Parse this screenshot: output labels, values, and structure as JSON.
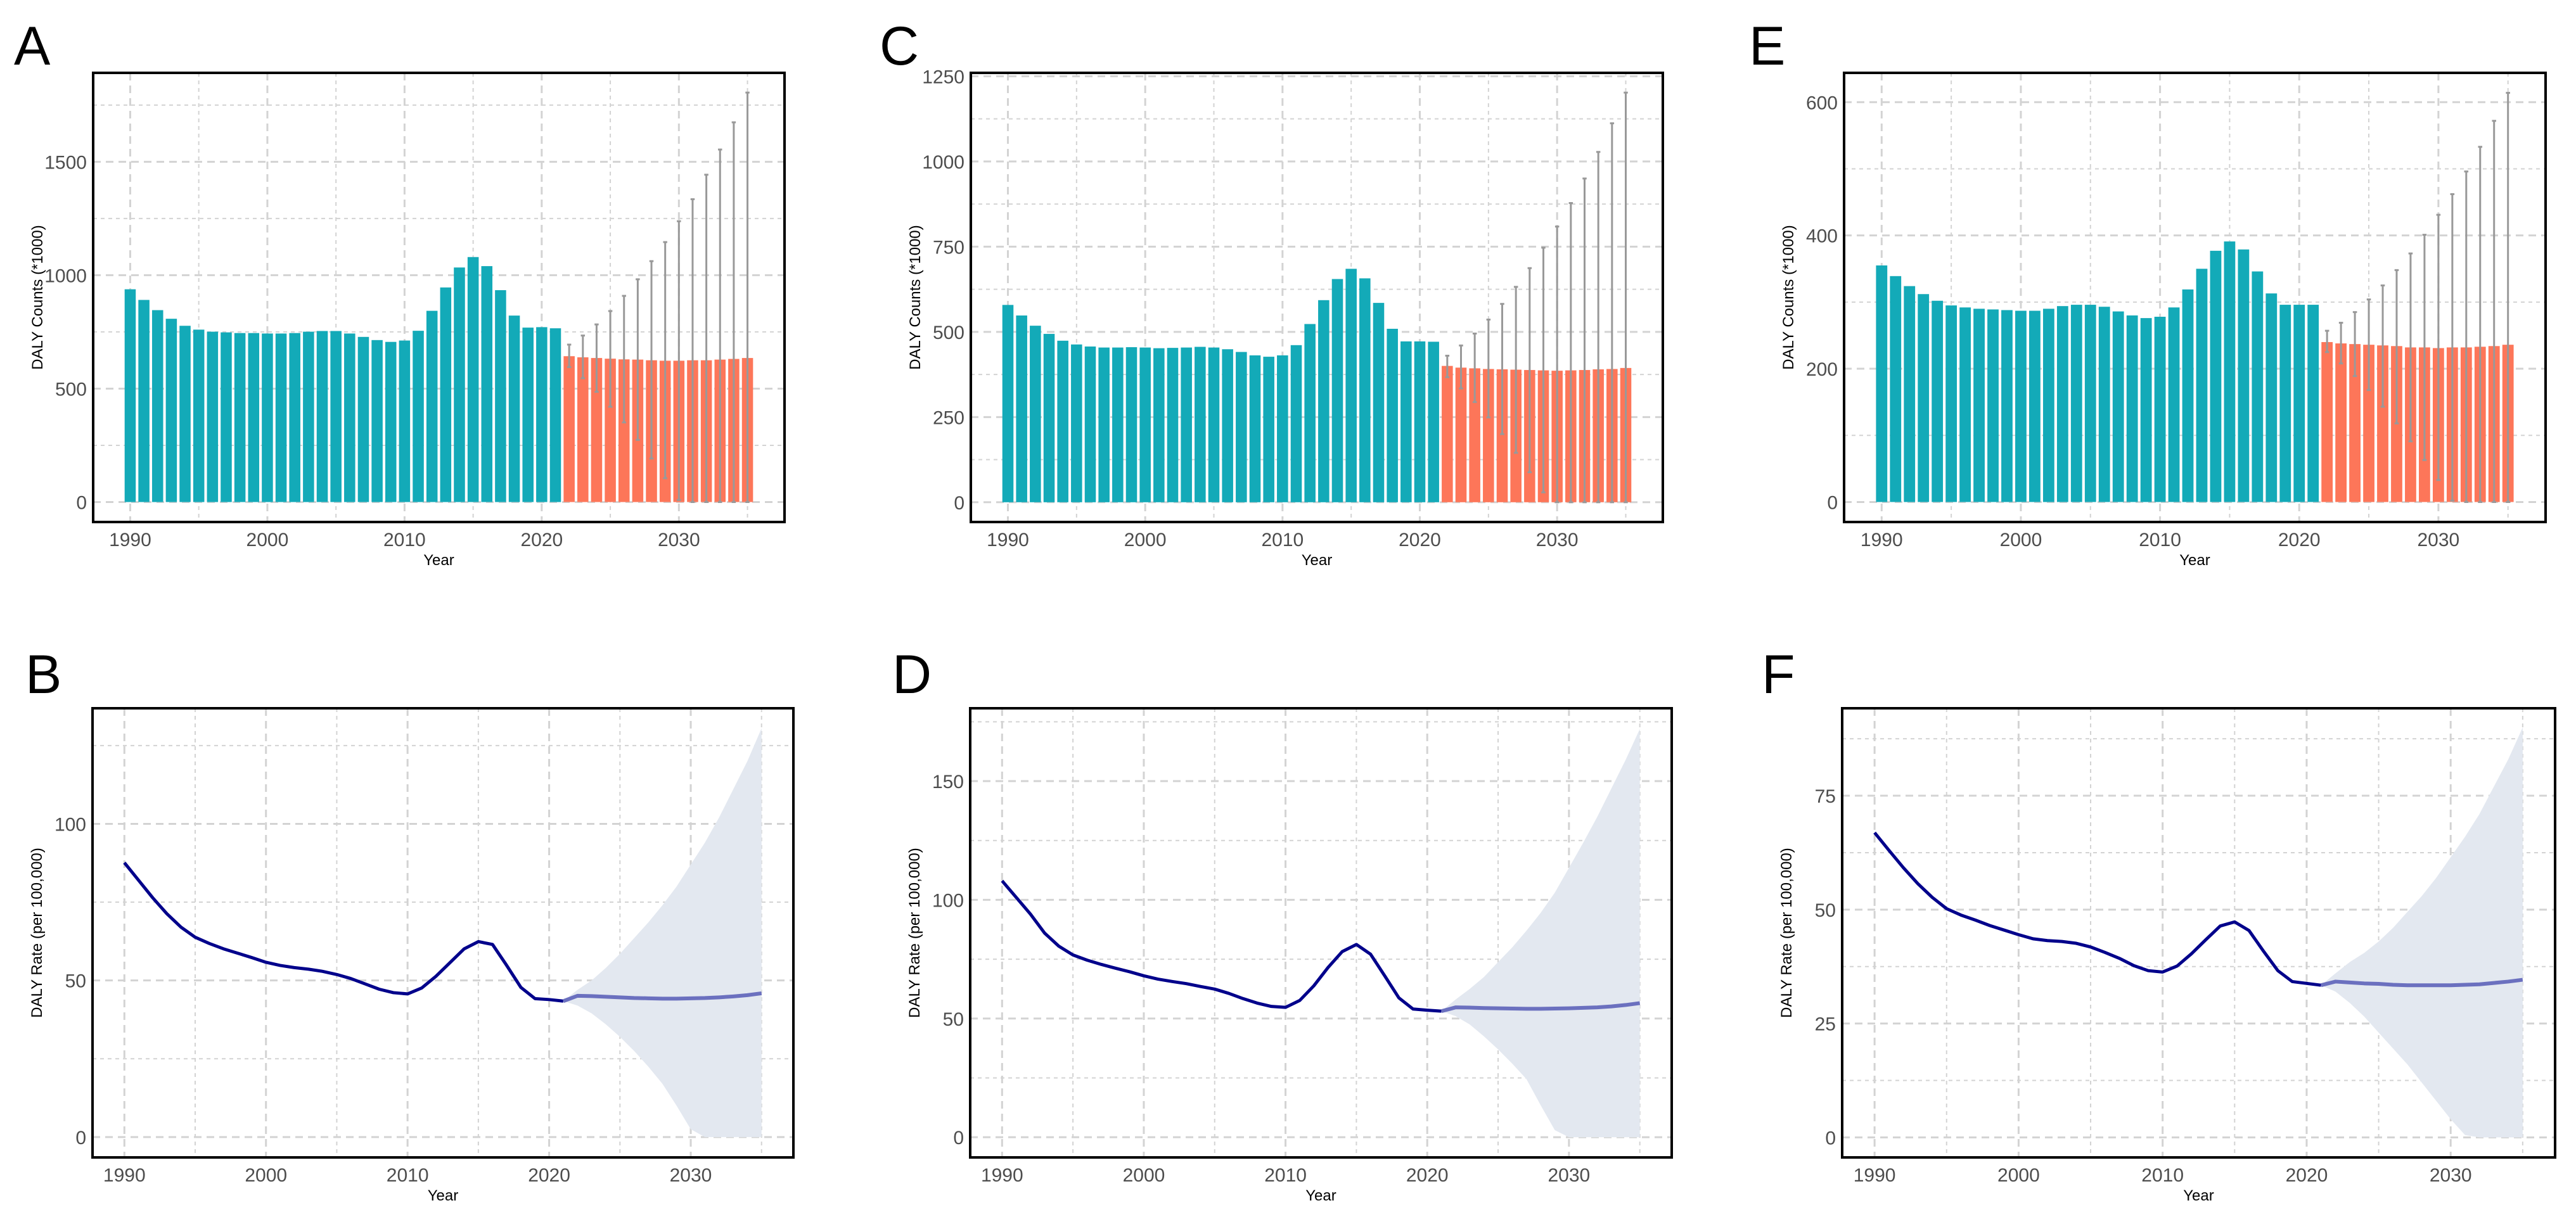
{
  "panel_letters": [
    "A",
    "B",
    "C",
    "D",
    "E",
    "F"
  ],
  "colors": {
    "observed_bar": "#13aab8",
    "predicted_bar": "#fd7659",
    "error_bar": "#999999",
    "observed_line": "#00008b",
    "predicted_line": "#6b70bf",
    "ribbon": "#e3e8f0",
    "grid": "#d3d3d3"
  },
  "chart_data": [
    {
      "panel": "A",
      "type": "bar",
      "title": "",
      "xlabel": "Year",
      "ylabel": "DALY Counts (*1000)",
      "xlim": [
        1987.3,
        2037.7
      ],
      "ylim": [
        -88,
        1892
      ],
      "xticks": [
        1990,
        2000,
        2010,
        2020,
        2030
      ],
      "yticks": [
        0,
        500,
        1000,
        1500
      ],
      "grid": true,
      "observed": {
        "x_start": 1990,
        "values": [
          938,
          891,
          846,
          808,
          777,
          760,
          751,
          748,
          745,
          745,
          743,
          743,
          745,
          751,
          754,
          754,
          743,
          728,
          714,
          706,
          712,
          755,
          843,
          946,
          1034,
          1080,
          1040,
          934,
          822,
          769,
          771,
          766
        ]
      },
      "predicted": {
        "x_start": 2022,
        "values": [
          643,
          638,
          635,
          632,
          629,
          628,
          625,
          623,
          623,
          625,
          625,
          628,
          631,
          635
        ],
        "lower": [
          595,
          546,
          486,
          420,
          351,
          274,
          192,
          105,
          9,
          0,
          0,
          0,
          0,
          0
        ],
        "upper": [
          694,
          734,
          783,
          842,
          909,
          982,
          1062,
          1146,
          1238,
          1335,
          1443,
          1554,
          1674,
          1805
        ]
      }
    },
    {
      "panel": "B",
      "type": "line",
      "title": "",
      "xlabel": "Year",
      "ylabel": "DALY Rate (per 100,000)",
      "xlim": [
        1987.75,
        2037.25
      ],
      "ylim": [
        -6.5,
        136.9
      ],
      "xticks": [
        1990,
        2000,
        2010,
        2020,
        2030
      ],
      "yticks": [
        0,
        50,
        100
      ],
      "grid": true,
      "observed": {
        "x_start": 1990,
        "values": [
          87.6,
          82,
          76.4,
          71.3,
          67,
          63.8,
          61.8,
          60.1,
          58.7,
          57.3,
          55.8,
          54.8,
          54.1,
          53.6,
          52.9,
          51.9,
          50.6,
          48.9,
          47.2,
          46.1,
          45.7,
          47.6,
          51.3,
          55.7,
          60.1,
          62.4,
          61.5,
          54.8,
          47.8,
          44.2,
          43.9,
          43.4
        ]
      },
      "predicted": {
        "x_start": 2021,
        "values": [
          43.4,
          45.1,
          45.0,
          44.8,
          44.6,
          44.4,
          44.3,
          44.2,
          44.2,
          44.3,
          44.4,
          44.6,
          44.9,
          45.3,
          45.9
        ],
        "lower": [
          43.4,
          42,
          39.5,
          36,
          32,
          27.5,
          22.5,
          17,
          10,
          2.5,
          0,
          0,
          0,
          0,
          0
        ],
        "upper": [
          43.4,
          47,
          50,
          54,
          58.5,
          63.5,
          68.5,
          74,
          80,
          87,
          94,
          102,
          111,
          120,
          130.5
        ]
      }
    },
    {
      "panel": "C",
      "type": "bar",
      "title": "",
      "xlabel": "Year",
      "ylabel": "DALY Counts (*1000)",
      "xlim": [
        1987.3,
        2037.7
      ],
      "ylim": [
        -58,
        1260
      ],
      "xticks": [
        1990,
        2000,
        2010,
        2020,
        2030
      ],
      "yticks": [
        0,
        250,
        500,
        750,
        1000,
        1250
      ],
      "grid": true,
      "observed": {
        "x_start": 1990,
        "values": [
          579,
          548,
          518,
          494,
          474,
          463,
          457,
          454,
          454,
          455,
          454,
          452,
          453,
          454,
          456,
          454,
          449,
          441,
          431,
          427,
          431,
          461,
          523,
          593,
          655,
          685,
          657,
          585,
          509,
          472,
          472,
          471
        ]
      },
      "predicted": {
        "x_start": 2022,
        "values": [
          400,
          395,
          393,
          391,
          390,
          389,
          388,
          387,
          386,
          387,
          388,
          390,
          391,
          394
        ],
        "lower": [
          367,
          334,
          294,
          249,
          200,
          145,
          88,
          29,
          0,
          0,
          0,
          0,
          0,
          0
        ],
        "upper": [
          430,
          460,
          495,
          536,
          582,
          632,
          687,
          747,
          809,
          878,
          950,
          1028,
          1112,
          1202
        ]
      }
    },
    {
      "panel": "D",
      "type": "line",
      "title": "",
      "xlabel": "Year",
      "ylabel": "DALY Rate (per 100,000)",
      "xlim": [
        1987.75,
        2037.25
      ],
      "ylim": [
        -8.5,
        180.7
      ],
      "xticks": [
        1990,
        2000,
        2010,
        2020,
        2030
      ],
      "yticks": [
        0,
        50,
        100,
        150
      ],
      "grid": true,
      "observed": {
        "x_start": 1990,
        "values": [
          108,
          101,
          94,
          86,
          80.5,
          76.8,
          74.6,
          72.8,
          71.2,
          69.7,
          68,
          66.6,
          65.6,
          64.7,
          63.5,
          62.4,
          60.6,
          58.4,
          56.5,
          55.1,
          54.7,
          57.6,
          63.8,
          71.5,
          78.2,
          81.2,
          77.1,
          68,
          58.7,
          54,
          53.5,
          53.1
        ]
      },
      "predicted": {
        "x_start": 2021,
        "values": [
          53.1,
          54.7,
          54.6,
          54.4,
          54.3,
          54.2,
          54.1,
          54.1,
          54.2,
          54.3,
          54.5,
          54.7,
          55.1,
          55.7,
          56.5
        ],
        "lower": [
          53.1,
          51,
          47.5,
          42.5,
          37,
          31,
          24.5,
          13.5,
          3,
          0,
          0,
          0,
          0,
          0,
          0
        ],
        "upper": [
          53.1,
          58,
          62.5,
          67.5,
          73.8,
          80,
          87,
          94.5,
          103,
          113.5,
          124,
          135,
          147,
          159,
          172
        ]
      }
    },
    {
      "panel": "E",
      "type": "bar",
      "title": "",
      "xlabel": "Year",
      "ylabel": "DALY Counts (*1000)",
      "xlim": [
        1987.3,
        2037.7
      ],
      "ylim": [
        -30,
        644
      ],
      "xticks": [
        1990,
        2000,
        2010,
        2020,
        2030
      ],
      "yticks": [
        0,
        200,
        400,
        600
      ],
      "grid": true,
      "observed": {
        "x_start": 1990,
        "values": [
          355,
          339,
          324,
          312,
          302,
          295,
          292,
          290,
          289,
          288,
          287,
          287,
          290,
          294,
          296,
          296,
          293,
          286,
          280,
          276,
          278,
          292,
          319,
          350,
          377,
          391,
          379,
          346,
          313,
          296,
          296,
          296
        ]
      },
      "predicted": {
        "x_start": 2022,
        "values": [
          240,
          238,
          237,
          236,
          235,
          234,
          232,
          232,
          231,
          232,
          232,
          233,
          234,
          236
        ],
        "lower": [
          225,
          208,
          189,
          168,
          143,
          118,
          91,
          63,
          33,
          2,
          0,
          0,
          0,
          0
        ],
        "upper": [
          257,
          269,
          285,
          304,
          325,
          348,
          373,
          401,
          431,
          462,
          496,
          533,
          572,
          614
        ]
      }
    },
    {
      "panel": "F",
      "type": "line",
      "title": "",
      "xlabel": "Year",
      "ylabel": "DALY Rate (per 100,000)",
      "xlim": [
        1987.75,
        2037.25
      ],
      "ylim": [
        -4.4,
        94.2
      ],
      "xticks": [
        1990,
        2000,
        2010,
        2020,
        2030
      ],
      "yticks": [
        0,
        25,
        50,
        75
      ],
      "grid": true,
      "observed": {
        "x_start": 1990,
        "values": [
          66.9,
          63,
          59.2,
          55.7,
          52.7,
          50.2,
          48.8,
          47.7,
          46.5,
          45.5,
          44.5,
          43.6,
          43.2,
          43,
          42.6,
          41.8,
          40.6,
          39.3,
          37.7,
          36.6,
          36.3,
          37.6,
          40.3,
          43.4,
          46.4,
          47.3,
          45.4,
          40.9,
          36.6,
          34.2,
          33.8,
          33.4
        ]
      },
      "predicted": {
        "x_start": 2021,
        "values": [
          33.4,
          34.2,
          34.0,
          33.8,
          33.7,
          33.5,
          33.4,
          33.4,
          33.4,
          33.4,
          33.5,
          33.6,
          33.9,
          34.2,
          34.6
        ],
        "lower": [
          33.4,
          32,
          29.5,
          26.5,
          23,
          19.5,
          16,
          12,
          8,
          4,
          0.5,
          0,
          0,
          0,
          0
        ],
        "upper": [
          33.4,
          36,
          38.5,
          40.5,
          43,
          46,
          49.5,
          53,
          57,
          61.5,
          66,
          71,
          77,
          83,
          90
        ]
      }
    }
  ]
}
